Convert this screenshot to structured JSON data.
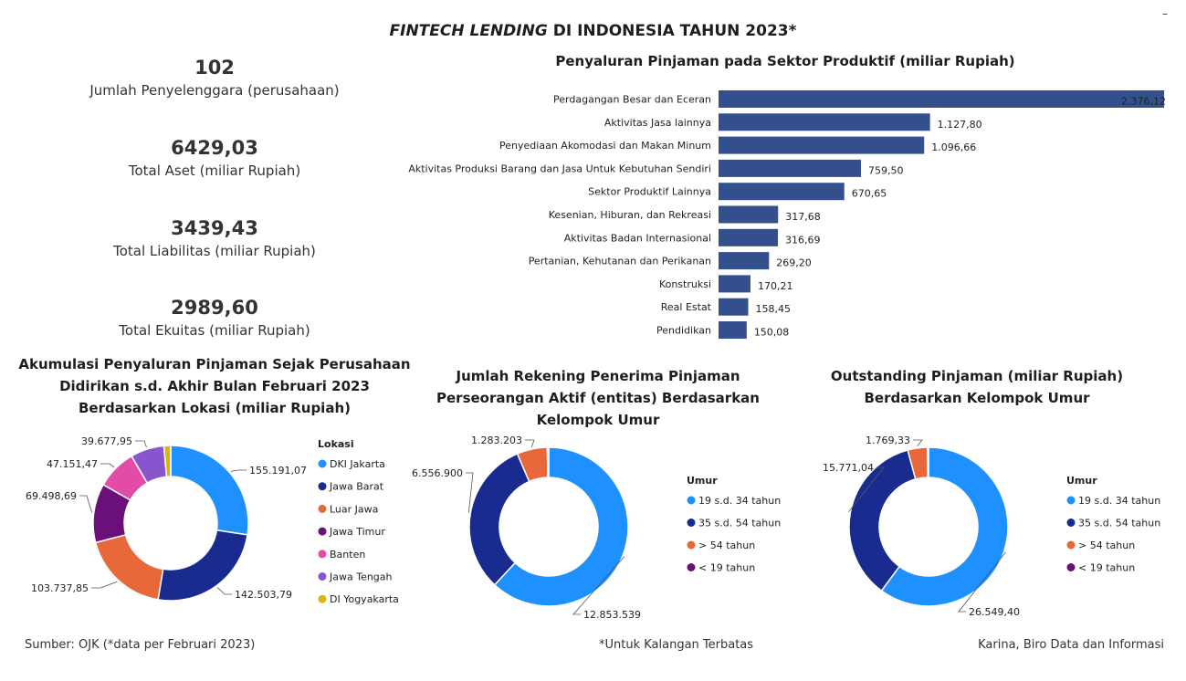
{
  "header": {
    "title_italic": "FINTECH LENDING",
    "title_rest": " DI INDONESIA TAHUN 2023*",
    "corner_mark": "–"
  },
  "stats": [
    {
      "value": "102",
      "label": "Jumlah Penyelenggara (perusahaan)"
    },
    {
      "value": "6429,03",
      "label": "Total Aset (miliar Rupiah)"
    },
    {
      "value": "3439,43",
      "label": "Total Liabilitas (miliar Rupiah)"
    },
    {
      "value": "2989,60",
      "label": "Total Ekuitas (miliar Rupiah)"
    }
  ],
  "chart_data": [
    {
      "type": "bar",
      "orientation": "horizontal",
      "title": "Penyaluran Pinjaman pada Sektor Produktif (miliar Rupiah)",
      "color": "#34508c",
      "categories": [
        "Perdagangan Besar dan Eceran",
        "Aktivitas Jasa lainnya",
        "Penyediaan Akomodasi dan Makan Minum",
        "Aktivitas Produksi Barang dan Jasa Untuk Kebutuhan Sendiri",
        "Sektor Produktif Lainnya",
        "Kesenian, Hiburan, dan Rekreasi",
        "Aktivitas Badan Internasional",
        "Pertanian, Kehutanan dan Perikanan",
        "Konstruksi",
        "Real Estat",
        "Pendidikan"
      ],
      "values": [
        2376.12,
        1127.8,
        1096.66,
        759.5,
        670.65,
        317.68,
        316.69,
        269.2,
        170.21,
        158.45,
        150.08
      ],
      "labels": [
        "2.376,12",
        "1.127,80",
        "1.096,66",
        "759,50",
        "670,65",
        "317,68",
        "316,69",
        "269,20",
        "170,21",
        "158,45",
        "150,08"
      ],
      "xlim": [
        0,
        2376.12
      ]
    },
    {
      "type": "pie",
      "variant": "donut",
      "title": "Akumulasi Penyaluran Pinjaman Sejak Perusahaan Didirikan s.d. Akhir Bulan Februari 2023 Berdasarkan Lokasi (miliar Rupiah)",
      "legend_title": "Lokasi",
      "legend_position": "right",
      "categories": [
        "DKI Jakarta",
        "Jawa Barat",
        "Luar Jawa",
        "Jawa Timur",
        "Banten",
        "Jawa Tengah",
        "DI Yogyakarta"
      ],
      "values": [
        155191.07,
        142503.79,
        103737.85,
        69498.69,
        47151.47,
        39677.95,
        8000
      ],
      "labels": [
        "155.191,07",
        "142.503,79",
        "103.737,85",
        "69.498,69",
        "47.151,47",
        "39.677,95",
        ""
      ],
      "colors": [
        "#1e90ff",
        "#1a2b8f",
        "#e8683a",
        "#6b0f7a",
        "#e34ba9",
        "#8855cc",
        "#d9b514"
      ]
    },
    {
      "type": "pie",
      "variant": "donut",
      "title": "Jumlah Rekening Penerima Pinjaman Perseorangan Aktif (entitas) Berdasarkan Kelompok Umur",
      "legend_title": "Umur",
      "legend_position": "right",
      "categories": [
        "19 s.d. 34 tahun",
        "35 s.d. 54 tahun",
        "> 54 tahun",
        "< 19 tahun"
      ],
      "values": [
        12853539,
        6556900,
        1283203,
        60000
      ],
      "labels": [
        "12.853.539",
        "6.556.900",
        "1.283.203",
        ""
      ],
      "colors": [
        "#1e90ff",
        "#1a2b8f",
        "#e8683a",
        "#6b0f7a"
      ]
    },
    {
      "type": "pie",
      "variant": "donut",
      "title": "Outstanding Pinjaman (miliar Rupiah) Berdasarkan Kelompok Umur",
      "legend_title": "Umur",
      "legend_position": "right",
      "categories": [
        "19 s.d. 34 tahun",
        "35 s.d. 54 tahun",
        "> 54 tahun",
        "< 19 tahun"
      ],
      "values": [
        26549.4,
        15771.04,
        1769.33,
        100
      ],
      "labels": [
        "26.549,40",
        "15.771,04",
        "1.769,33",
        ""
      ],
      "colors": [
        "#1e90ff",
        "#1a2b8f",
        "#e8683a",
        "#6b0f7a"
      ]
    }
  ],
  "donut_titles": [
    "Akumulasi Penyaluran Pinjaman Sejak Perusahaan Didirikan s.d. Akhir Bulan Februari 2023 Berdasarkan Lokasi (miliar Rupiah)",
    "Jumlah Rekening Penerima Pinjaman Perseorangan Aktif (entitas) Berdasarkan Kelompok Umur",
    "Outstanding Pinjaman (miliar Rupiah) Berdasarkan Kelompok Umur"
  ],
  "footer": {
    "source": "Sumber: OJK (*data per Februari 2023)",
    "note": "*Untuk Kalangan Terbatas",
    "author": "Karina, Biro Data dan Informasi"
  }
}
